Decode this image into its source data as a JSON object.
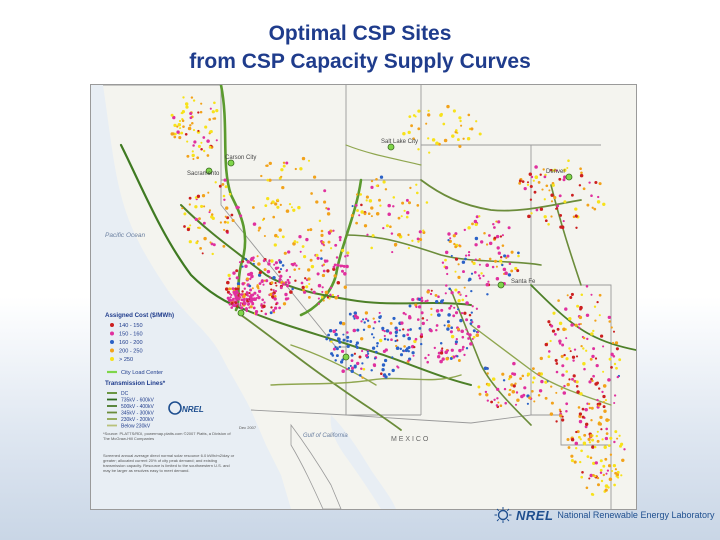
{
  "slide": {
    "title_line1": "Optimal CSP Sites",
    "title_line2": "from CSP Capacity Supply Curves"
  },
  "map": {
    "ocean_label": "Pacific Ocean",
    "gulf_label": "Gulf of California",
    "country_label": "M E X I C O",
    "cities": [
      "Salt Lake City",
      "Denver",
      "Santa Fe",
      "Sacramento",
      "Carson City"
    ],
    "legend": {
      "title": "Assigned Cost ($/MWh)",
      "cost_classes": [
        {
          "label": "140 - 150",
          "color": "#cc1f1f"
        },
        {
          "label": "150 - 160",
          "color": "#e0309e"
        },
        {
          "label": "160 - 200",
          "color": "#2b62c7"
        },
        {
          "label": "200 - 250",
          "color": "#f2a21a"
        },
        {
          "label": "> 250",
          "color": "#f7e21a"
        }
      ],
      "load_center_label": "City Load Center",
      "load_center_color": "#7fd64a",
      "transmission_title": "Transmission Lines*",
      "transmission_classes": [
        {
          "label": "DC",
          "color": "#5b8c2e"
        },
        {
          "label": "735kV - 600kV",
          "color": "#2f6b1f"
        },
        {
          "label": "500kV - 400kV",
          "color": "#4a7a2a"
        },
        {
          "label": "345kV - 300kV",
          "color": "#6b8c3a"
        },
        {
          "label": "230kV - 200kV",
          "color": "#8fa64f"
        },
        {
          "label": "Below 230kV",
          "color": "#b8c27a"
        }
      ],
      "logo_text": "NREL",
      "date_text": "Dec 2007",
      "source_text": "*Source: PLATTS/RDI, powermap.platts.com ©2007 Platts, a Division of The McGraw-Hill Companies",
      "note_text": "Screened annual average direct normal solar resource 6.0 kWh/m2/day or greater; allocated current 20% of city peak demand; and existing transmission capacity. Resource is limited to the southwestern U.S. and may be larger as resolves easy to meet demand."
    }
  },
  "footer": {
    "logo_mark": "NREL",
    "lab_name": "National Renewable Energy Laboratory"
  }
}
